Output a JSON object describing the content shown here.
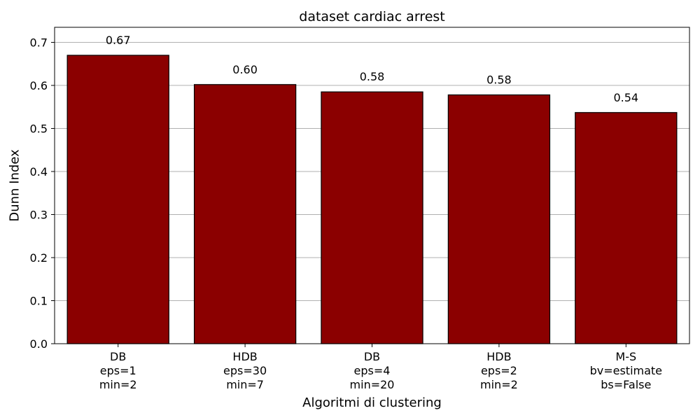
{
  "chart_data": {
    "type": "bar",
    "title": "dataset cardiac arrest",
    "xlabel": "Algoritmi di clustering",
    "ylabel": "Dunn Index",
    "categories": [
      [
        "DB",
        "eps=1",
        "min=2"
      ],
      [
        "HDB",
        "eps=30",
        "min=7"
      ],
      [
        "DB",
        "eps=4",
        "min=20"
      ],
      [
        "HDB",
        "eps=2",
        "min=2"
      ],
      [
        "M-S",
        "bv=estimate",
        "bs=False"
      ]
    ],
    "values": [
      0.67,
      0.602,
      0.585,
      0.578,
      0.537
    ],
    "value_labels": [
      "0.67",
      "0.60",
      "0.58",
      "0.58",
      "0.54"
    ],
    "ylim": [
      0,
      0.735
    ],
    "yticks": [
      "0.0",
      "0.1",
      "0.2",
      "0.3",
      "0.4",
      "0.5",
      "0.6",
      "0.7"
    ],
    "grid": "y",
    "colors": {
      "bar": "#8b0000",
      "edge": "#000000",
      "grid": "#b0b0b0"
    }
  }
}
